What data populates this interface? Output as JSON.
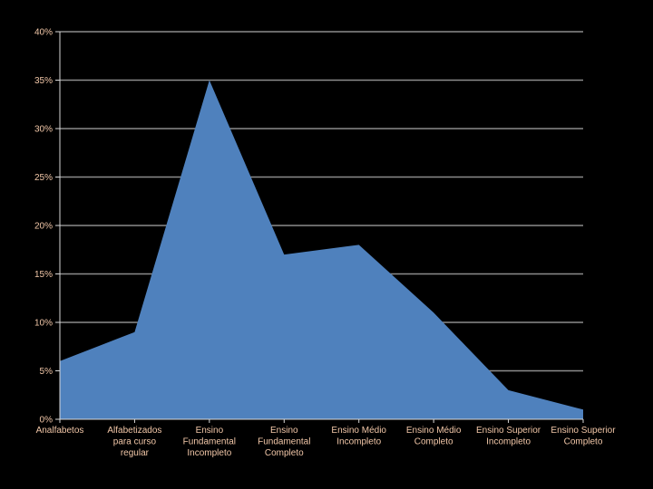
{
  "chart_data": {
    "type": "area",
    "title": "",
    "xlabel": "",
    "ylabel": "",
    "categories": [
      [
        "Analfabetos"
      ],
      [
        "Alfabetizados",
        "para curso",
        "regular"
      ],
      [
        "Ensino",
        "Fundamental",
        "Incompleto"
      ],
      [
        "Ensino",
        "Fundamental",
        "Completo"
      ],
      [
        "Ensino Médio",
        "Incompleto"
      ],
      [
        "Ensino Médio",
        "Completo"
      ],
      [
        "Ensino Superior",
        "Incompleto"
      ],
      [
        "Ensino Superior",
        "Completo"
      ]
    ],
    "values": [
      6,
      9,
      35,
      17,
      18,
      11,
      3,
      1
    ],
    "ylim": [
      0,
      40
    ],
    "yticks": [
      0,
      5,
      10,
      15,
      20,
      25,
      30,
      35,
      40
    ],
    "yticks_labels": [
      "0%",
      "5%",
      "10%",
      "15%",
      "20%",
      "25%",
      "30%",
      "35%",
      "40%"
    ],
    "grid": true,
    "legend": "none",
    "colors": {
      "background": "#000000",
      "area": "#4f81bd",
      "grid": "#8c8c8c",
      "axis": "#d9d9d9",
      "tick_text": "#f2c7a8"
    }
  }
}
